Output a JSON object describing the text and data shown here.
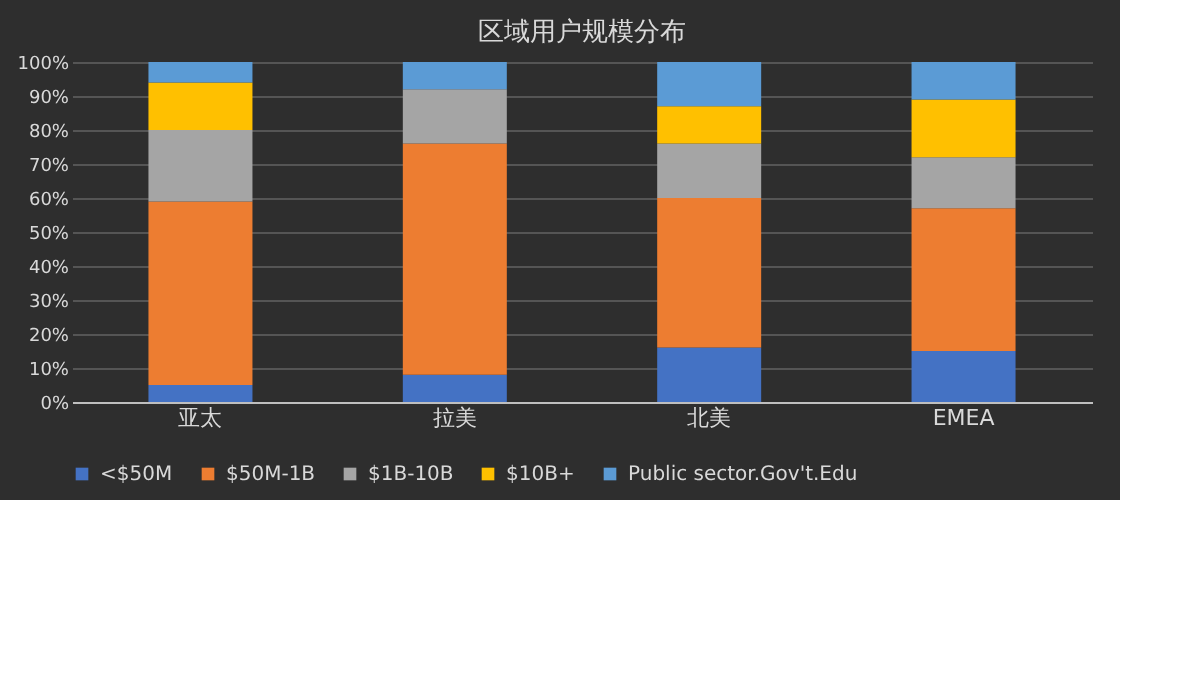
{
  "chart_data": {
    "type": "bar",
    "title": "区域用户规模分布",
    "stacked": true,
    "categories": [
      "亚太",
      "拉美",
      "北美",
      "EMEA"
    ],
    "series": [
      {
        "name": "<$50M",
        "color": "#4472c4",
        "values": [
          5,
          8,
          16,
          15
        ]
      },
      {
        "name": "$50M-1B",
        "color": "#ed7d31",
        "values": [
          54,
          68,
          44,
          42
        ]
      },
      {
        "name": "$1B-10B",
        "color": "#a5a5a5",
        "values": [
          21,
          16,
          16,
          15
        ]
      },
      {
        "name": "$10B+",
        "color": "#ffc000",
        "values": [
          14,
          0,
          11,
          17
        ]
      },
      {
        "name": "Public sector.Gov't.Edu",
        "color": "#5b9bd5",
        "values": [
          6,
          8,
          13,
          11
        ]
      }
    ],
    "ylim": [
      0,
      100
    ],
    "yticks": [
      {
        "value": 0,
        "label": "0%"
      },
      {
        "value": 10,
        "label": "10%"
      },
      {
        "value": 20,
        "label": "20%"
      },
      {
        "value": 30,
        "label": "30%"
      },
      {
        "value": 40,
        "label": "40%"
      },
      {
        "value": 50,
        "label": "50%"
      },
      {
        "value": 60,
        "label": "60%"
      },
      {
        "value": 70,
        "label": "70%"
      },
      {
        "value": 80,
        "label": "80%"
      },
      {
        "value": 90,
        "label": "90%"
      },
      {
        "value": 100,
        "label": "100%"
      }
    ],
    "grid": "y",
    "legend": "bottom"
  }
}
